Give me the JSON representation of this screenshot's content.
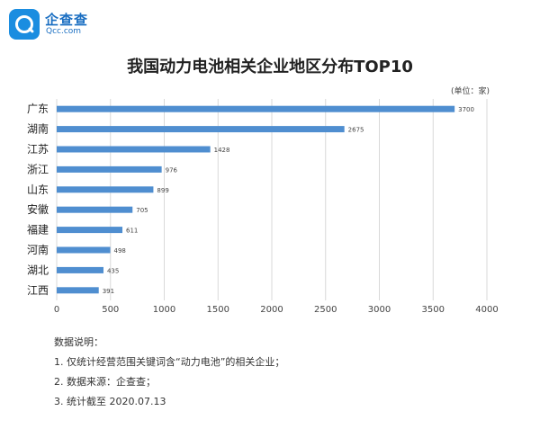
{
  "logo": {
    "name": "企查查",
    "url": "Qcc.com"
  },
  "chart_data": {
    "type": "bar",
    "orientation": "horizontal",
    "title": "我国动力电池相关企业地区分布TOP10",
    "unit_label": "(单位：家)",
    "categories": [
      "广东",
      "湖南",
      "江苏",
      "浙江",
      "山东",
      "安徽",
      "福建",
      "河南",
      "湖北",
      "江西"
    ],
    "values": [
      3700,
      2675,
      1428,
      976,
      899,
      705,
      611,
      498,
      435,
      391
    ],
    "xlim": [
      0,
      4000
    ],
    "xticks": [
      "0",
      "500",
      "1000",
      "1500",
      "2000",
      "2500",
      "3000",
      "3500",
      "4000"
    ],
    "grid": true,
    "bar_color": "#4f8ed0"
  },
  "notes": {
    "heading": "数据说明：",
    "items": [
      "1. 仅统计经营范围关键词含“动力电池”的相关企业；",
      "2. 数据来源：企查查；",
      "3. 统计截至 2020.07.13"
    ]
  }
}
